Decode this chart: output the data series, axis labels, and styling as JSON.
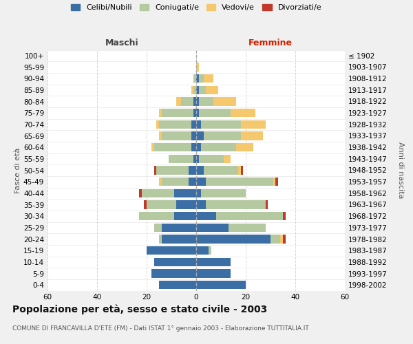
{
  "age_groups": [
    "0-4",
    "5-9",
    "10-14",
    "15-19",
    "20-24",
    "25-29",
    "30-34",
    "35-39",
    "40-44",
    "45-49",
    "50-54",
    "55-59",
    "60-64",
    "65-69",
    "70-74",
    "75-79",
    "80-84",
    "85-89",
    "90-94",
    "95-99",
    "100+"
  ],
  "birth_years": [
    "1998-2002",
    "1993-1997",
    "1988-1992",
    "1983-1987",
    "1978-1982",
    "1973-1977",
    "1968-1972",
    "1963-1967",
    "1958-1962",
    "1953-1957",
    "1948-1952",
    "1943-1947",
    "1938-1942",
    "1933-1937",
    "1928-1932",
    "1923-1927",
    "1918-1922",
    "1913-1917",
    "1908-1912",
    "1903-1907",
    "≤ 1902"
  ],
  "colors": {
    "celibi": "#3a6ea5",
    "coniugati": "#b5c9a0",
    "vedovi": "#f5c86e",
    "divorziati": "#c0392b"
  },
  "males": {
    "celibi": [
      15,
      18,
      17,
      20,
      14,
      14,
      9,
      8,
      9,
      3,
      3,
      1,
      2,
      2,
      2,
      1,
      1,
      0,
      0,
      0,
      0
    ],
    "coniugati": [
      0,
      0,
      0,
      0,
      1,
      3,
      14,
      12,
      13,
      11,
      13,
      10,
      15,
      12,
      13,
      13,
      5,
      1,
      1,
      0,
      0
    ],
    "vedovi": [
      0,
      0,
      0,
      0,
      0,
      0,
      0,
      0,
      0,
      1,
      0,
      0,
      1,
      1,
      1,
      1,
      2,
      1,
      0,
      0,
      0
    ],
    "divorziati": [
      0,
      0,
      0,
      0,
      0,
      0,
      0,
      1,
      1,
      0,
      1,
      0,
      0,
      0,
      0,
      0,
      0,
      0,
      0,
      0,
      0
    ]
  },
  "females": {
    "celibi": [
      20,
      14,
      14,
      5,
      30,
      13,
      8,
      4,
      2,
      4,
      3,
      1,
      2,
      3,
      2,
      1,
      1,
      1,
      1,
      0,
      0
    ],
    "coniugati": [
      0,
      0,
      0,
      1,
      4,
      15,
      27,
      24,
      18,
      27,
      14,
      10,
      14,
      15,
      16,
      13,
      6,
      3,
      2,
      0,
      0
    ],
    "vedovi": [
      0,
      0,
      0,
      0,
      1,
      0,
      0,
      0,
      0,
      1,
      1,
      3,
      7,
      9,
      10,
      10,
      9,
      5,
      4,
      1,
      0
    ],
    "divorziati": [
      0,
      0,
      0,
      0,
      1,
      0,
      1,
      1,
      0,
      1,
      1,
      0,
      0,
      0,
      0,
      0,
      0,
      0,
      0,
      0,
      0
    ]
  },
  "xlim": 60,
  "title": "Popolazione per età, sesso e stato civile - 2003",
  "subtitle": "COMUNE DI FRANCAVILLA D'ETE (FM) - Dati ISTAT 1° gennaio 2003 - Elaborazione TUTTITALIA.IT",
  "xlabel_left": "Maschi",
  "xlabel_right": "Femmine",
  "ylabel_left": "Fasce di età",
  "ylabel_right": "Anni di nascita",
  "legend_labels": [
    "Celibi/Nubili",
    "Coniugati/e",
    "Vedovi/e",
    "Divorziati/e"
  ],
  "bg_color": "#f0f0f0",
  "plot_bg": "#ffffff",
  "grid_color": "#cccccc",
  "title_fontsize": 10,
  "subtitle_fontsize": 6.5,
  "tick_fontsize": 7.5,
  "legend_fontsize": 8
}
